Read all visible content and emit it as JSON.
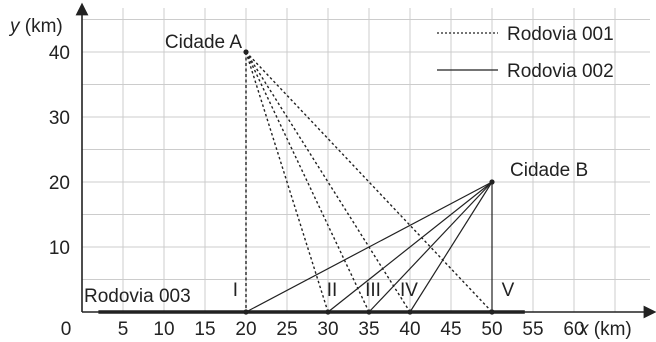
{
  "axes": {
    "x_var": "x",
    "x_unit": "(km)",
    "y_var": "y",
    "y_unit": "(km)",
    "x_ticks": [
      "0",
      "5",
      "10",
      "15",
      "20",
      "25",
      "30",
      "35",
      "40",
      "45",
      "50",
      "55",
      "60"
    ],
    "y_ticks": [
      "10",
      "20",
      "30",
      "40"
    ]
  },
  "legend": {
    "dotted": "Rodovia 001",
    "solid": "Rodovia 002"
  },
  "cities": {
    "a": {
      "label": "Cidade A",
      "x": 20,
      "y": 40
    },
    "b": {
      "label": "Cidade B",
      "x": 50,
      "y": 20
    }
  },
  "road_003": {
    "label": "Rodovia 003",
    "y": 0,
    "x_from": 2,
    "x_to": 54
  },
  "points": [
    {
      "id": "I",
      "x": 20
    },
    {
      "id": "II",
      "x": 30
    },
    {
      "id": "III",
      "x": 35
    },
    {
      "id": "IV",
      "x": 40
    },
    {
      "id": "V",
      "x": 50
    }
  ],
  "colors": {
    "ink": "#222222",
    "grid": "#cccccc",
    "dot": "#222222"
  }
}
